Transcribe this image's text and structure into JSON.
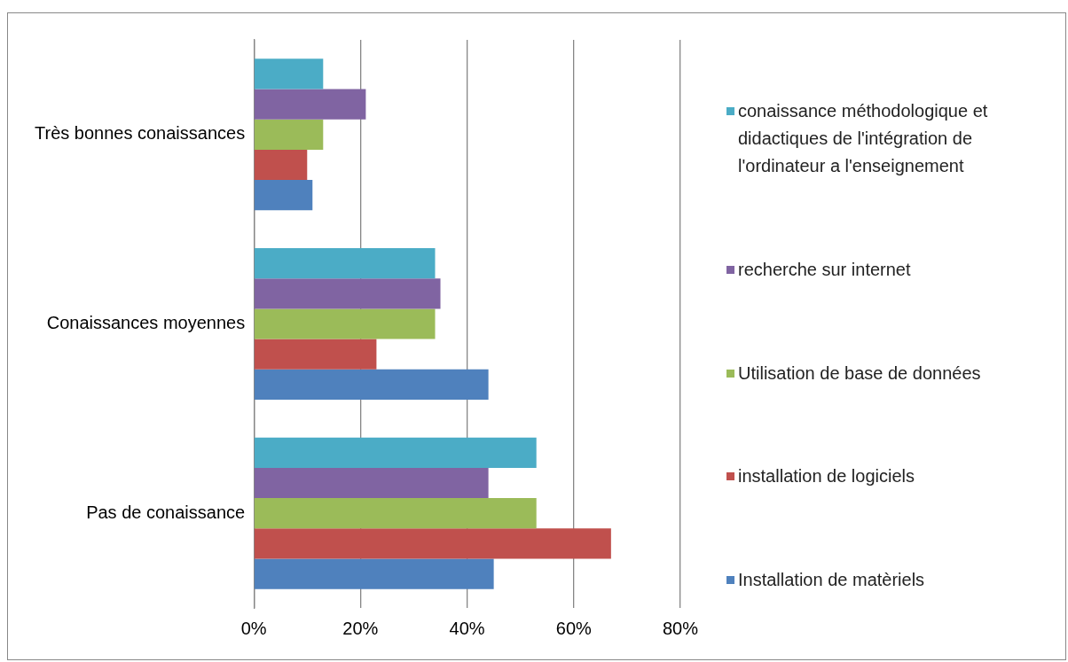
{
  "chart_data": {
    "type": "bar",
    "orientation": "horizontal",
    "categories": [
      "Très bonnes conaissances",
      "Conaissances moyennes",
      "Pas de conaissance"
    ],
    "series": [
      {
        "name": "conaissance méthodologique et didactiques de l'intégration de l'ordinateur a l'enseignement",
        "color": "#4bacc6",
        "values": [
          13,
          34,
          53
        ]
      },
      {
        "name": "recherche sur internet",
        "color": "#8064a2",
        "values": [
          21,
          35,
          44
        ]
      },
      {
        "name": "Utilisation de base de données",
        "color": "#9bbb59",
        "values": [
          13,
          34,
          53
        ]
      },
      {
        "name": "installation de logiciels",
        "color": "#c0504d",
        "values": [
          10,
          23,
          67
        ]
      },
      {
        "name": "Installation de matèriels",
        "color": "#4f81bd",
        "values": [
          11,
          44,
          45
        ]
      }
    ],
    "xlim": [
      0,
      80
    ],
    "xticks": [
      {
        "value": 0,
        "label": "0%"
      },
      {
        "value": 20,
        "label": "20%"
      },
      {
        "value": 40,
        "label": "40%"
      },
      {
        "value": 60,
        "label": "60%"
      },
      {
        "value": 80,
        "label": "80%"
      }
    ],
    "grid": "x",
    "legend": "right"
  }
}
